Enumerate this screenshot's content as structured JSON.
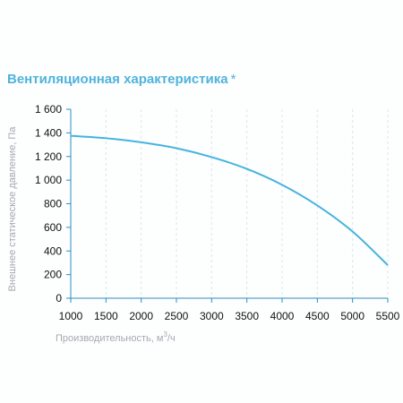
{
  "title": "Вентиляционная характеристика",
  "title_marker": "*",
  "colors": {
    "title": "#4fb3dc",
    "curve": "#46b3e0",
    "grid": "#d6e8f0",
    "axis": "#2a8fc0"
  },
  "chart_data": {
    "type": "line",
    "title": "Вентиляционная характеристика *",
    "xlabel": "Производительность, м³/ч",
    "ylabel": "Внешнее статическое давление, Па",
    "xlim": [
      1000,
      5500
    ],
    "ylim": [
      0,
      1600
    ],
    "x_ticks": [
      1000,
      1500,
      2000,
      2500,
      3000,
      3500,
      4000,
      4500,
      5000,
      5500
    ],
    "x_tick_labels": [
      "1000",
      "1500",
      "2000",
      "2500",
      "3000",
      "3500",
      "4000",
      "4500",
      "5000",
      "5500"
    ],
    "y_ticks": [
      0,
      200,
      400,
      600,
      800,
      1000,
      1200,
      1400,
      1600
    ],
    "y_tick_labels": [
      "0",
      "200",
      "400",
      "600",
      "800",
      "1 000",
      "1 200",
      "1 400",
      "1 600"
    ],
    "grid": "vertical dashed",
    "series": [
      {
        "x": [
          1000,
          1500,
          2000,
          2500,
          3000,
          3500,
          4000,
          4500,
          5000,
          5500
        ],
        "values": [
          1375,
          1355,
          1320,
          1270,
          1195,
          1095,
          960,
          785,
          565,
          280
        ]
      }
    ]
  }
}
